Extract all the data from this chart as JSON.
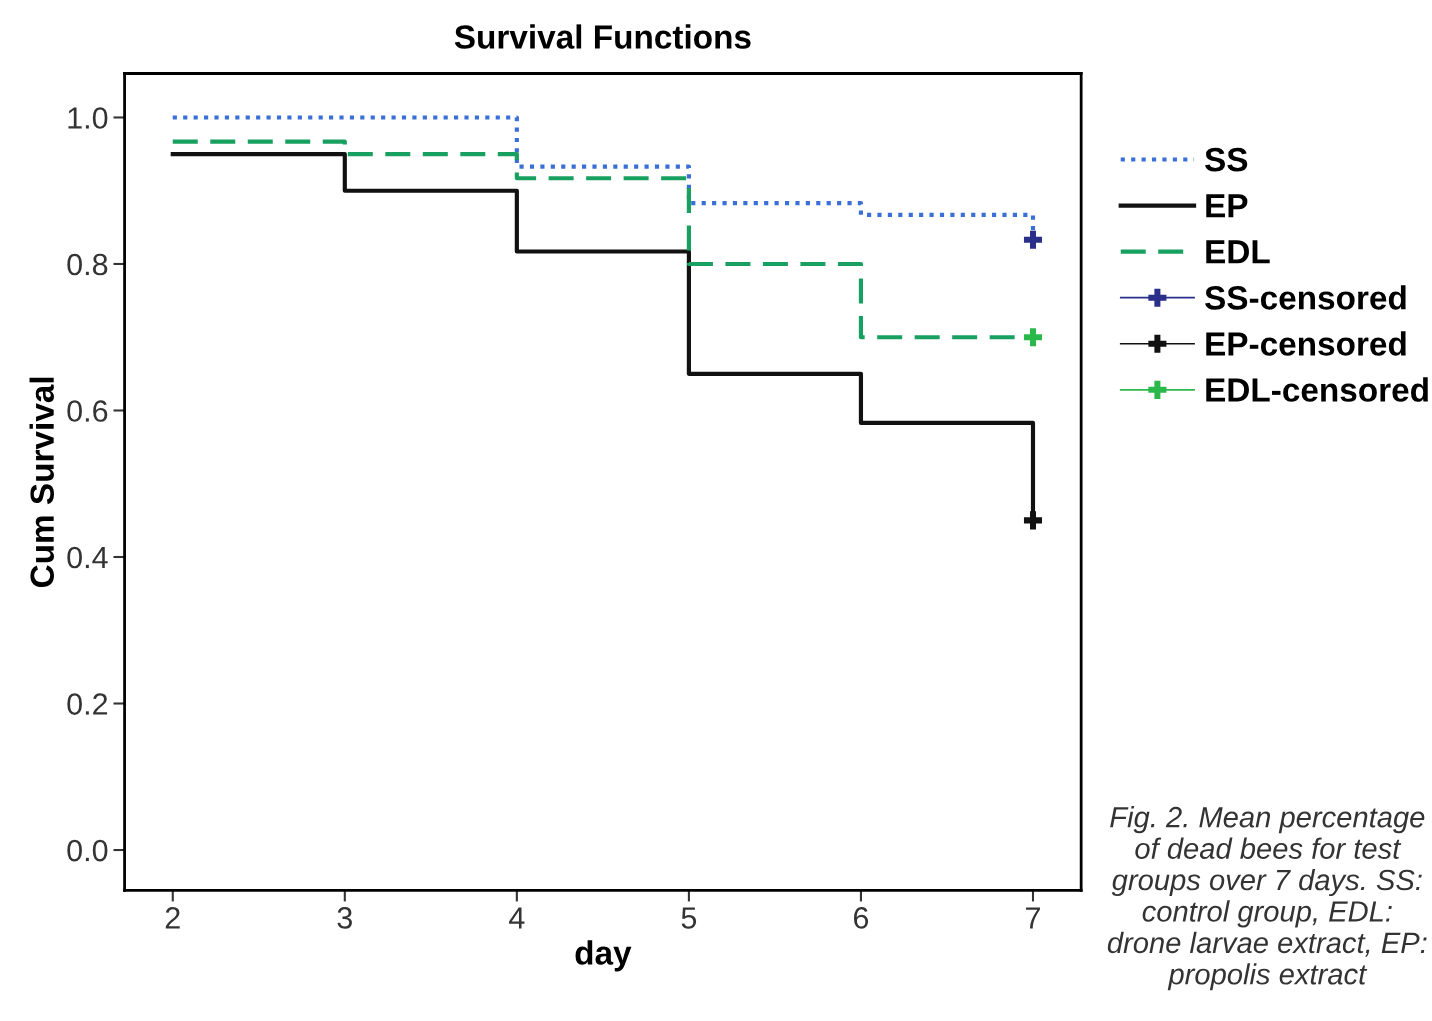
{
  "chart_data": {
    "type": "step",
    "title": "Survival Functions",
    "xlabel": "day",
    "ylabel": "Cum Survival",
    "xlim": [
      1.72,
      7.28
    ],
    "xticks": [
      2,
      3,
      4,
      5,
      6,
      7
    ],
    "ylim": [
      -0.055,
      1.06
    ],
    "yticks": [
      {
        "value": 0.0,
        "label": "0.0"
      },
      0.2,
      0.4,
      0.6,
      0.8,
      {
        "value": 1.0,
        "label": "1.0"
      }
    ],
    "x": [
      2,
      3,
      4,
      5,
      6,
      7
    ],
    "series": [
      {
        "name": "SS",
        "color": "#3a6fd8",
        "line_style": "dotted",
        "values": [
          1.0,
          1.0,
          0.933,
          0.883,
          0.867,
          0.833
        ]
      },
      {
        "name": "EP",
        "color": "#111111",
        "line_style": "solid",
        "values": [
          0.95,
          0.9,
          0.817,
          0.65,
          0.583,
          0.45
        ]
      },
      {
        "name": "EDL",
        "color": "#18a060",
        "line_style": "dashed",
        "values": [
          0.967,
          0.95,
          0.917,
          0.8,
          0.7,
          0.7
        ]
      },
      {
        "name": "SS-censored",
        "type": "scatter",
        "marker": "cross",
        "color": "#2a2f8a",
        "values": [
          null,
          null,
          null,
          null,
          null,
          0.833
        ]
      },
      {
        "name": "EP-censored",
        "type": "scatter",
        "marker": "cross",
        "color": "#111111",
        "values": [
          null,
          null,
          null,
          null,
          null,
          0.45
        ]
      },
      {
        "name": "EDL-censored",
        "type": "scatter",
        "marker": "cross",
        "color": "#2bb84a",
        "values": [
          null,
          null,
          null,
          null,
          null,
          0.7
        ]
      }
    ],
    "legend": "right",
    "grid": false,
    "annotations": [
      "Fig. 2. Mean percentage of dead bees for test groups over 7 days. SS: control group, EDL: drone larvae extract, EP: propolis extract"
    ]
  }
}
